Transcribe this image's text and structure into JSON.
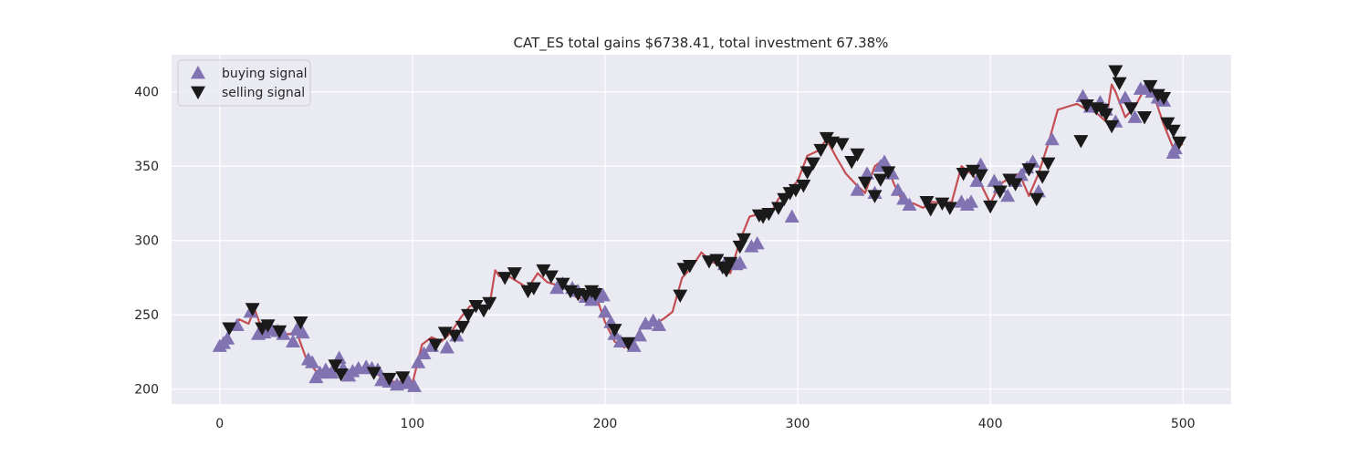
{
  "chart_data": {
    "type": "line",
    "title": "CAT_ES total gains $6738.41, total investment 67.38%",
    "xlabel": "",
    "ylabel": "",
    "xlim": [
      -25,
      525
    ],
    "ylim": [
      190,
      425
    ],
    "xticks": [
      0,
      100,
      200,
      300,
      400,
      500
    ],
    "yticks": [
      200,
      250,
      300,
      350,
      400
    ],
    "grid": true,
    "legend_position": "top-left",
    "colors": {
      "background": "#eaeaf2",
      "grid": "#ffffff",
      "line": "#c44e52",
      "buy": "#8172b2",
      "sell": "#1a1a1a"
    },
    "price_anchors": {
      "x": [
        0,
        5,
        10,
        15,
        18,
        22,
        28,
        35,
        40,
        45,
        50,
        55,
        60,
        65,
        70,
        75,
        80,
        85,
        90,
        95,
        100,
        105,
        110,
        115,
        120,
        125,
        130,
        135,
        140,
        143,
        145,
        150,
        155,
        160,
        165,
        170,
        175,
        180,
        185,
        190,
        195,
        200,
        205,
        210,
        215,
        220,
        225,
        230,
        235,
        240,
        245,
        250,
        255,
        260,
        265,
        270,
        275,
        280,
        285,
        290,
        295,
        300,
        305,
        310,
        315,
        320,
        325,
        330,
        335,
        340,
        345,
        350,
        355,
        360,
        365,
        370,
        375,
        380,
        385,
        390,
        395,
        400,
        405,
        410,
        415,
        420,
        425,
        430,
        435,
        440,
        445,
        450,
        455,
        460,
        463,
        465,
        470,
        475,
        480,
        485,
        490,
        495,
        500
      ],
      "y": [
        230,
        238,
        247,
        244,
        254,
        240,
        238,
        237,
        238,
        220,
        212,
        213,
        214,
        210,
        214,
        214,
        212,
        207,
        205,
        205,
        204,
        230,
        235,
        232,
        238,
        248,
        256,
        256,
        256,
        280,
        276,
        276,
        272,
        268,
        278,
        272,
        270,
        267,
        262,
        260,
        264,
        245,
        232,
        228,
        232,
        245,
        243,
        247,
        252,
        275,
        282,
        292,
        286,
        283,
        278,
        300,
        316,
        318,
        316,
        328,
        333,
        340,
        357,
        360,
        368,
        356,
        345,
        338,
        332,
        350,
        355,
        338,
        325,
        325,
        322,
        326,
        325,
        326,
        350,
        345,
        338,
        325,
        338,
        342,
        345,
        330,
        345,
        365,
        388,
        390,
        392,
        388,
        386,
        380,
        405,
        400,
        383,
        390,
        402,
        397,
        378,
        362,
        365
      ]
    },
    "series": [
      {
        "name": "buying signal",
        "marker": "triangle-up",
        "x": [
          0,
          2,
          4,
          9,
          16,
          20,
          23,
          27,
          30,
          33,
          38,
          40,
          43,
          46,
          48,
          50,
          52,
          55,
          58,
          62,
          64,
          67,
          69,
          72,
          76,
          79,
          82,
          84,
          88,
          92,
          95,
          98,
          101,
          103,
          106,
          110,
          118,
          123,
          175,
          178,
          183,
          186,
          190,
          193,
          196,
          197,
          199,
          200,
          203,
          205,
          208,
          215,
          218,
          221,
          225,
          228,
          262,
          268,
          270,
          276,
          279,
          297,
          331,
          336,
          340,
          343,
          345,
          349,
          352,
          355,
          358,
          385,
          388,
          390,
          393,
          395,
          402,
          405,
          409,
          413,
          416,
          419,
          422,
          425,
          432,
          448,
          452,
          457,
          460,
          465,
          470,
          475,
          478,
          481,
          484,
          487,
          490,
          495,
          496
        ],
        "y": [
          229,
          231,
          234,
          243,
          252,
          237,
          238,
          240,
          239,
          237,
          232,
          240,
          238,
          220,
          218,
          208,
          211,
          213,
          211,
          221,
          214,
          209,
          212,
          214,
          215,
          214,
          213,
          206,
          205,
          203,
          204,
          205,
          202,
          218,
          224,
          229,
          228,
          236,
          268,
          271,
          268,
          266,
          262,
          260,
          262,
          264,
          263,
          252,
          245,
          237,
          232,
          229,
          236,
          244,
          246,
          243,
          284,
          284,
          285,
          296,
          298,
          316,
          334,
          345,
          332,
          350,
          353,
          345,
          334,
          328,
          324,
          326,
          324,
          326,
          340,
          351,
          340,
          336,
          330,
          340,
          344,
          349,
          353,
          333,
          368,
          397,
          390,
          393,
          388,
          380,
          396,
          383,
          402,
          403,
          400,
          396,
          394,
          359,
          362
        ]
      },
      {
        "name": "selling signal",
        "marker": "triangle-down",
        "x": [
          5,
          17,
          22,
          25,
          31,
          42,
          60,
          63,
          80,
          88,
          95,
          112,
          117,
          122,
          126,
          129,
          133,
          137,
          140,
          148,
          153,
          160,
          163,
          168,
          172,
          178,
          182,
          186,
          190,
          193,
          195,
          205,
          212,
          239,
          241,
          244,
          254,
          258,
          261,
          263,
          265,
          270,
          272,
          280,
          282,
          285,
          290,
          293,
          296,
          299,
          303,
          305,
          308,
          312,
          315,
          318,
          323,
          328,
          331,
          335,
          340,
          343,
          347,
          367,
          369,
          375,
          379,
          386,
          391,
          395,
          400,
          405,
          410,
          413,
          420,
          424,
          427,
          430,
          447,
          450,
          455,
          458,
          460,
          463,
          465,
          467,
          473,
          480,
          483,
          487,
          490,
          492,
          495,
          498
        ],
        "y": [
          241,
          254,
          241,
          243,
          239,
          245,
          216,
          210,
          211,
          207,
          208,
          230,
          238,
          236,
          242,
          250,
          256,
          253,
          258,
          275,
          278,
          266,
          268,
          280,
          276,
          271,
          266,
          264,
          263,
          266,
          264,
          240,
          231,
          263,
          281,
          283,
          286,
          287,
          282,
          280,
          285,
          296,
          301,
          317,
          316,
          318,
          322,
          328,
          332,
          334,
          337,
          346,
          352,
          361,
          369,
          366,
          365,
          353,
          358,
          339,
          330,
          341,
          346,
          326,
          321,
          325,
          322,
          345,
          347,
          344,
          323,
          333,
          341,
          338,
          348,
          328,
          343,
          352,
          367,
          391,
          389,
          388,
          385,
          377,
          414,
          406,
          389,
          383,
          404,
          398,
          396,
          379,
          374,
          366
        ]
      }
    ]
  }
}
